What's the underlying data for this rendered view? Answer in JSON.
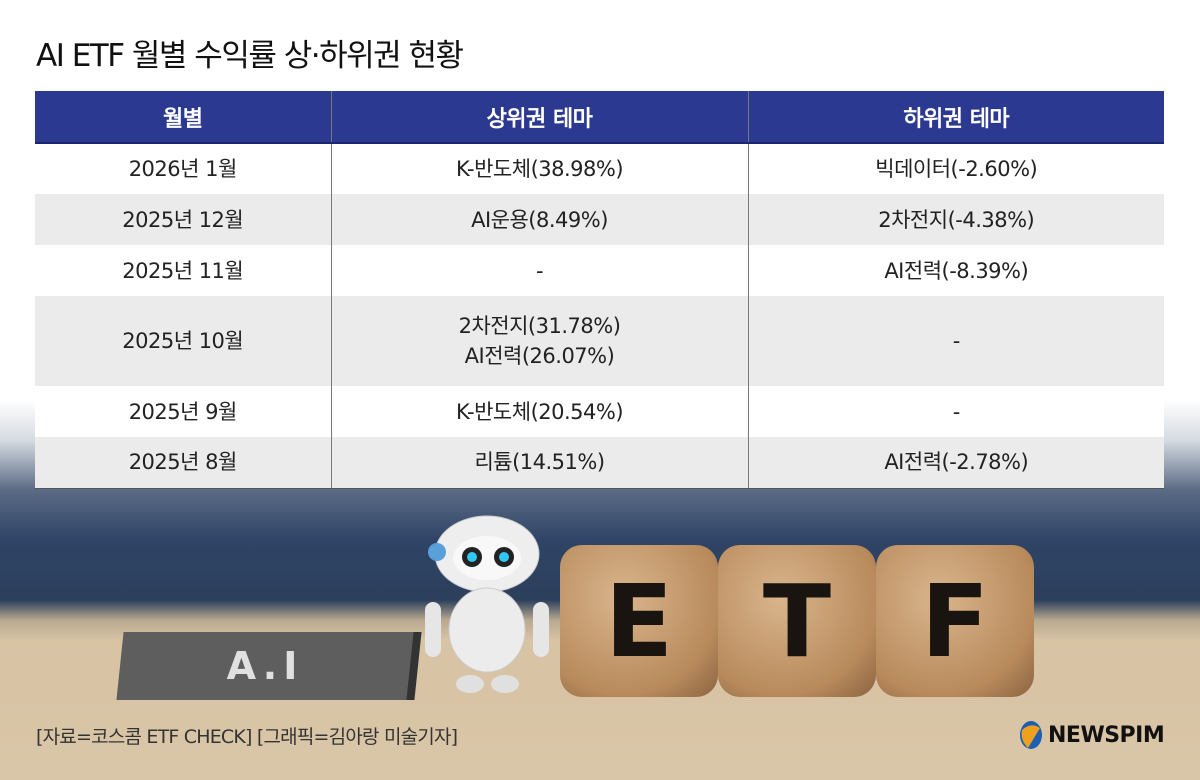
{
  "title": "AI ETF 월별 수익률 상·하위권 현황",
  "table": {
    "headers": [
      "월별",
      "상위권 테마",
      "하위권 테마"
    ],
    "rows": [
      {
        "month": "2026년 1월",
        "top": [
          "K-반도체(38.98%)"
        ],
        "bottom": "빅데이터(-2.60%)"
      },
      {
        "month": "2025년 12월",
        "top": [
          "AI운용(8.49%)"
        ],
        "bottom": "2차전지(-4.38%)"
      },
      {
        "month": "2025년 11월",
        "top": [
          "-"
        ],
        "bottom": "AI전력(-8.39%)"
      },
      {
        "month": "2025년 10월",
        "top": [
          "2차전지(31.78%)",
          "AI전력(26.07%)"
        ],
        "bottom": "-"
      },
      {
        "month": "2025년 9월",
        "top": [
          "K-반도체(20.54%)"
        ],
        "bottom": "-"
      },
      {
        "month": "2025년 8월",
        "top": [
          "리튬(14.51%)"
        ],
        "bottom": "AI전력(-2.78%)"
      }
    ]
  },
  "illustration": {
    "sign": "A.I",
    "dice": [
      "E",
      "T",
      "F"
    ]
  },
  "source": "[자료=코스콤 ETF CHECK] [그래픽=김아랑 미술기자]",
  "logo": "NEWSPIM",
  "colors": {
    "header": "#2b3990",
    "row_alt": "#ebebeb"
  }
}
